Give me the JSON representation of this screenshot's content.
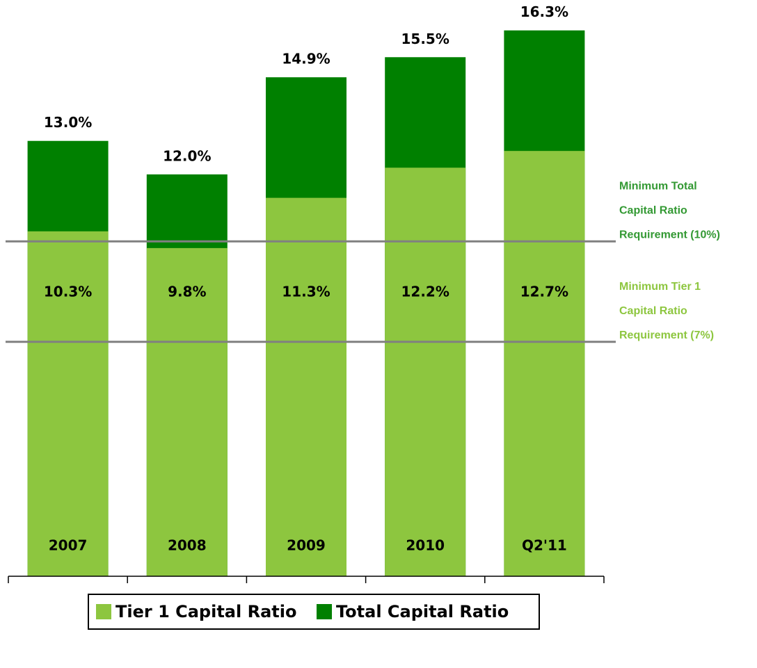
{
  "chart_data": {
    "type": "bar",
    "categories": [
      "2007",
      "2008",
      "2009",
      "2010",
      "Q2'11"
    ],
    "series": [
      {
        "name": "Total Capital Ratio",
        "color": "#008000",
        "values": [
          13.0,
          12.0,
          14.9,
          15.5,
          16.3
        ],
        "value_labels": [
          "13.0%",
          "12.0%",
          "14.9%",
          "15.5%",
          "16.3%"
        ]
      },
      {
        "name": "Tier 1 Capital Ratio",
        "color": "#8dc63f",
        "values": [
          10.3,
          9.8,
          11.3,
          12.2,
          12.7
        ],
        "value_labels": [
          "10.3%",
          "9.8%",
          "11.3%",
          "12.2%",
          "12.7%"
        ]
      }
    ],
    "ylim": [
      0,
      17
    ],
    "reference_lines": [
      {
        "value": 10,
        "color": "#339933",
        "label": [
          "Minimum Total",
          "Capital Ratio",
          "Requirement  (10%)"
        ]
      },
      {
        "value": 7,
        "color": "#8dc63f",
        "label": [
          "Minimum Tier 1",
          "Capital Ratio",
          "Requirement  (7%)"
        ]
      }
    ]
  }
}
